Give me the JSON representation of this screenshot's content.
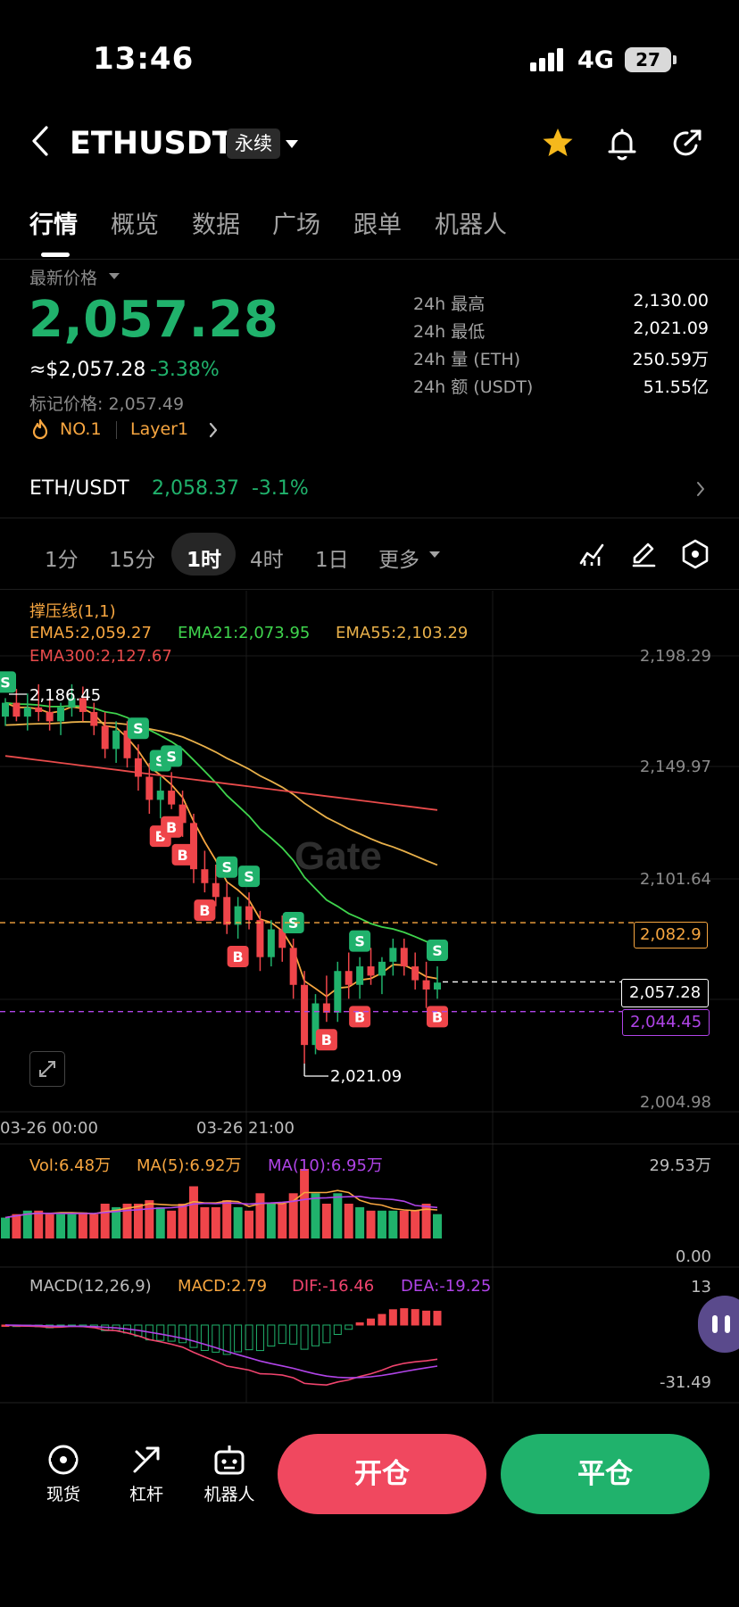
{
  "status_bar": {
    "time": "13:46",
    "network": "4G",
    "battery": "27"
  },
  "header": {
    "symbol": "ETHUSDT",
    "contract_type": "永续"
  },
  "tabs": [
    {
      "label": "行情"
    },
    {
      "label": "概览"
    },
    {
      "label": "数据"
    },
    {
      "label": "广场"
    },
    {
      "label": "跟单"
    },
    {
      "label": "机器人"
    }
  ],
  "price_block": {
    "latest_label": "最新价格",
    "last_price": "2,057.28",
    "usd_value": "≈$2,057.28",
    "change_pct": "-3.38%",
    "mark_price": "标记价格: 2,057.49",
    "rank": "NO.1",
    "tag": "Layer1"
  },
  "stats": [
    {
      "label": "24h  最高",
      "value": "2,130.00"
    },
    {
      "label": "24h  最低",
      "value": "2,021.09"
    },
    {
      "label": "24h  量 (ETH)",
      "value": "250.59万"
    },
    {
      "label": "24h  额 (USDT)",
      "value": "51.55亿"
    }
  ],
  "spot": {
    "pair": "ETH/USDT",
    "price_change": "2,058.37  -3.1%"
  },
  "intervals": [
    {
      "label": "1分"
    },
    {
      "label": "15分"
    },
    {
      "label": "1时"
    },
    {
      "label": "4时"
    },
    {
      "label": "1日"
    },
    {
      "label": "更多"
    }
  ],
  "colors": {
    "up": "#20b26c",
    "down": "#ef454a",
    "ema5": "#f7a640",
    "ema21": "#3fd44d",
    "ema55": "#e8b04a",
    "ema300": "#e84b4b",
    "macd_dif": "#f0446e",
    "macd_dea": "#b044e8"
  },
  "chart_data": {
    "type": "candlestick",
    "indicator_title": "撑压线(1,1)",
    "ema_labels": [
      "EMA5:2,059.27",
      "EMA21:2,073.95",
      "EMA55:2,103.29",
      "EMA300:2,127.67"
    ],
    "y_ticks": [
      "2,198.29",
      "2,149.97",
      "2,101.64",
      "2,004.98"
    ],
    "y_range": [
      2004.98,
      2198.29
    ],
    "x_ticks": [
      "03-26 00:00",
      "03-26 21:00"
    ],
    "high_annotation": "2,186.45",
    "low_annotation": "2,021.09",
    "resistance_level": "2,082.9",
    "current_price_tag": "2,057.28",
    "support_level": "2,044.45",
    "volume": {
      "vol_label": "Vol:6.48万",
      "ma5_label": "MA(5):6.92万",
      "ma10_label": "MA(10):6.95万",
      "max_tick": "29.53万",
      "min_tick": "0.00"
    },
    "macd": {
      "title": "MACD(12,26,9)",
      "macd_label": "MACD:2.79",
      "dif_label": "DIF:-16.46",
      "dea_label": "DEA:-19.25",
      "max_tick": "13",
      "min_tick": "-31.49"
    },
    "candles": [
      [
        2172,
        2180,
        2168,
        2178
      ],
      [
        2178,
        2184,
        2170,
        2172
      ],
      [
        2172,
        2182,
        2166,
        2176
      ],
      [
        2176,
        2186,
        2170,
        2174
      ],
      [
        2174,
        2180,
        2166,
        2170
      ],
      [
        2170,
        2178,
        2164,
        2176
      ],
      [
        2176,
        2186,
        2172,
        2180
      ],
      [
        2180,
        2185,
        2170,
        2174
      ],
      [
        2174,
        2178,
        2164,
        2168
      ],
      [
        2168,
        2174,
        2154,
        2158
      ],
      [
        2158,
        2170,
        2152,
        2166
      ],
      [
        2166,
        2170,
        2150,
        2154
      ],
      [
        2154,
        2160,
        2140,
        2146
      ],
      [
        2146,
        2152,
        2130,
        2136
      ],
      [
        2136,
        2146,
        2128,
        2140
      ],
      [
        2140,
        2148,
        2132,
        2134
      ],
      [
        2134,
        2140,
        2120,
        2126
      ],
      [
        2126,
        2130,
        2100,
        2106
      ],
      [
        2106,
        2114,
        2096,
        2100
      ],
      [
        2100,
        2108,
        2090,
        2094
      ],
      [
        2094,
        2100,
        2078,
        2082
      ],
      [
        2082,
        2094,
        2076,
        2090
      ],
      [
        2090,
        2096,
        2080,
        2084
      ],
      [
        2084,
        2088,
        2062,
        2068
      ],
      [
        2068,
        2084,
        2064,
        2080
      ],
      [
        2080,
        2086,
        2066,
        2072
      ],
      [
        2072,
        2076,
        2050,
        2056
      ],
      [
        2056,
        2062,
        2022,
        2030
      ],
      [
        2030,
        2052,
        2026,
        2048
      ],
      [
        2048,
        2060,
        2040,
        2044
      ],
      [
        2044,
        2066,
        2040,
        2062
      ],
      [
        2062,
        2070,
        2050,
        2056
      ],
      [
        2056,
        2068,
        2050,
        2064
      ],
      [
        2064,
        2072,
        2056,
        2060
      ],
      [
        2060,
        2068,
        2052,
        2066
      ],
      [
        2066,
        2076,
        2060,
        2072
      ],
      [
        2072,
        2076,
        2060,
        2064
      ],
      [
        2064,
        2070,
        2054,
        2058
      ],
      [
        2058,
        2066,
        2046,
        2054
      ],
      [
        2054,
        2064,
        2050,
        2057
      ]
    ],
    "markers": [
      {
        "side": "S",
        "i": 0
      },
      {
        "side": "S",
        "i": 12
      },
      {
        "side": "S",
        "i": 14
      },
      {
        "side": "S",
        "i": 15
      },
      {
        "side": "B",
        "i": 14
      },
      {
        "side": "B",
        "i": 15
      },
      {
        "side": "S",
        "i": 20
      },
      {
        "side": "B",
        "i": 16
      },
      {
        "side": "B",
        "i": 18
      },
      {
        "side": "S",
        "i": 22
      },
      {
        "side": "S",
        "i": 26
      },
      {
        "side": "B",
        "i": 21
      },
      {
        "side": "S",
        "i": 32
      },
      {
        "side": "B",
        "i": 29
      },
      {
        "side": "B",
        "i": 32
      },
      {
        "side": "S",
        "i": 48
      },
      {
        "side": "B",
        "i": 48
      }
    ]
  },
  "bottom_bar": {
    "spot_label": "现货",
    "leverage_label": "杠杆",
    "bot_label": "机器人",
    "open_label": "开仓",
    "close_label": "平仓"
  }
}
